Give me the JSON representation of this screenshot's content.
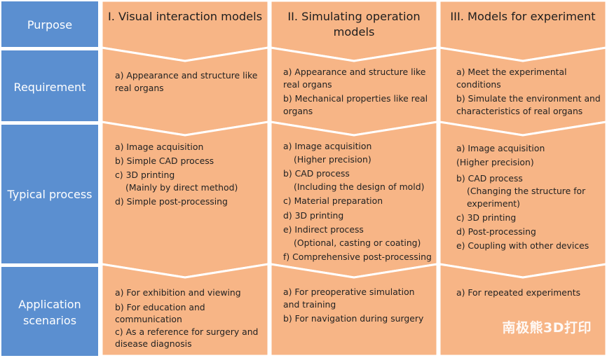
{
  "colors": {
    "row_label_bg": "#5b8fd0",
    "cell_bg": "#f7b586",
    "border": "#ffffff"
  },
  "row_labels": [
    "Purpose",
    "Requirement",
    "Typical process",
    "Application scenarios"
  ],
  "columns": [
    {
      "heading": "I. Visual interaction models",
      "requirement": [
        "a) Appearance and structure like real organs"
      ],
      "process": [
        {
          "text": "a) Image acquisition"
        },
        {
          "text": "b) Simple CAD process"
        },
        {
          "text": "c) 3D printing"
        },
        {
          "text": "(Mainly by direct method)",
          "sub": true
        },
        {
          "text": "d) Simple post-processing"
        }
      ],
      "scenarios": [
        "a) For exhibition and viewing",
        "b) For education and communication",
        "c) As a reference for surgery and disease diagnosis"
      ]
    },
    {
      "heading": "II. Simulating operation models",
      "requirement": [
        "a) Appearance and structure like real organs",
        "b) Mechanical properties like real organs"
      ],
      "process": [
        {
          "text": "a) Image acquisition"
        },
        {
          "text": "(Higher precision)",
          "sub": true
        },
        {
          "text": "b) CAD process"
        },
        {
          "text": "(Including the design of mold)",
          "sub": true
        },
        {
          "text": "c) Material preparation"
        },
        {
          "text": "d) 3D printing"
        },
        {
          "text": "e) Indirect process"
        },
        {
          "text": "(Optional, casting or coating)",
          "sub": true
        },
        {
          "text": "f) Comprehensive post-processing"
        }
      ],
      "scenarios": [
        "a) For preoperative simulation and training",
        "b) For navigation during surgery"
      ]
    },
    {
      "heading": "III. Models for experiment",
      "requirement": [
        "a) Meet the experimental conditions",
        "b) Simulate the environment and characteristics of real organs"
      ],
      "process": [
        {
          "text": "a) Image acquisition"
        },
        {
          "text": "(Higher precision)"
        },
        {
          "text": "b) CAD process"
        },
        {
          "text": "(Changing the structure for experiment)",
          "sub": true
        },
        {
          "text": "c) 3D printing"
        },
        {
          "text": "d) Post-processing"
        },
        {
          "text": "e) Coupling with other devices"
        }
      ],
      "scenarios": [
        "a) For repeated experiments"
      ]
    }
  ],
  "watermark": "南极熊3D打印"
}
